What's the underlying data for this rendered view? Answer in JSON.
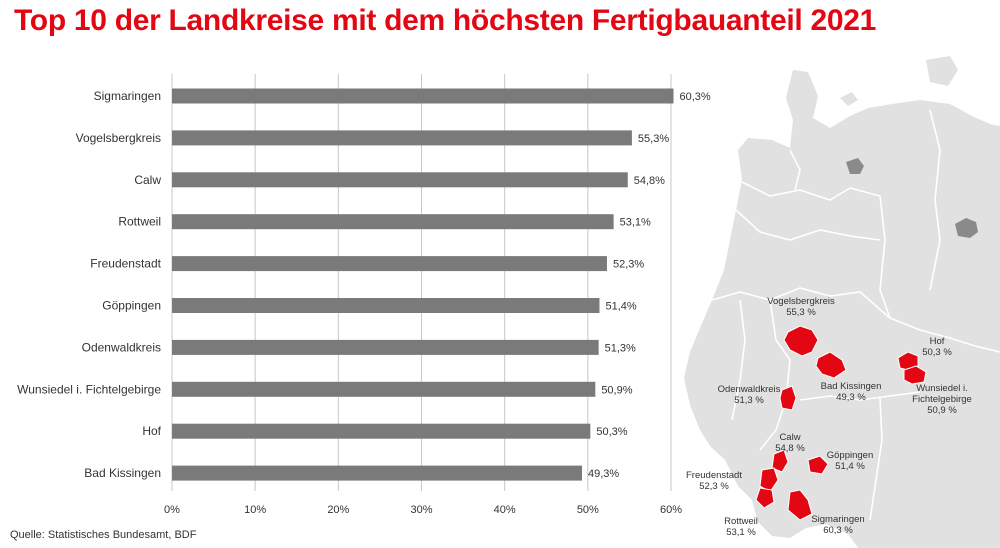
{
  "title": "Top 10 der Landkreise mit dem höchsten Fertigbauanteil 2021",
  "source": "Quelle: Statistisches Bundesamt, BDF",
  "colors": {
    "accent": "#e30613",
    "bar": "#7a7a7a",
    "grid": "#c8c8c8",
    "map_land": "#e1e1e1",
    "map_border": "#ffffff",
    "water": "#8a8a8a"
  },
  "chart_data": {
    "type": "bar",
    "orientation": "horizontal",
    "categories": [
      "Sigmaringen",
      "Vogelsbergkreis",
      "Calw",
      "Rottweil",
      "Freudenstadt",
      "Göppingen",
      "Odenwaldkreis",
      "Wunsiedel i. Fichtelgebirge",
      "Hof",
      "Bad Kissingen"
    ],
    "values": [
      60.3,
      55.3,
      54.8,
      53.1,
      52.3,
      51.4,
      51.3,
      50.9,
      50.3,
      49.3
    ],
    "value_labels": [
      "60,3%",
      "55,3%",
      "54,8%",
      "53,1%",
      "52,3%",
      "51,4%",
      "51,3%",
      "50,9%",
      "50,3%",
      "49,3%"
    ],
    "xticks": [
      0,
      10,
      20,
      30,
      40,
      50,
      60
    ],
    "xtick_labels": [
      "0%",
      "10%",
      "20%",
      "30%",
      "40%",
      "50%",
      "60%"
    ],
    "xlim": [
      0,
      60
    ],
    "grid": "vertical",
    "xlabel": "",
    "ylabel": ""
  },
  "map": {
    "regions": [
      {
        "name": "Vogelsbergkreis",
        "lines": [
          "Vogelsbergkreis",
          "55,3 %"
        ]
      },
      {
        "name": "Hof",
        "lines": [
          "Hof",
          "50,3 %"
        ]
      },
      {
        "name": "Bad Kissingen",
        "lines": [
          "Bad Kissingen",
          "49,3 %"
        ]
      },
      {
        "name": "Odenwaldkreis",
        "lines": [
          "Odenwaldkreis",
          "51,3 %"
        ]
      },
      {
        "name": "Wunsiedel",
        "lines": [
          "Wunsiedel i.",
          "Fichtelgebirge",
          "50,9 %"
        ]
      },
      {
        "name": "Calw",
        "lines": [
          "Calw",
          "54,8 %"
        ]
      },
      {
        "name": "Göppingen",
        "lines": [
          "Göppingen",
          "51,4 %"
        ]
      },
      {
        "name": "Freudenstadt",
        "lines": [
          "Freudenstadt",
          "52,3 %"
        ]
      },
      {
        "name": "Rottweil",
        "lines": [
          "Rottweil",
          "53,1 %"
        ]
      },
      {
        "name": "Sigmaringen",
        "lines": [
          "Sigmaringen",
          "60,3 %"
        ]
      }
    ]
  }
}
